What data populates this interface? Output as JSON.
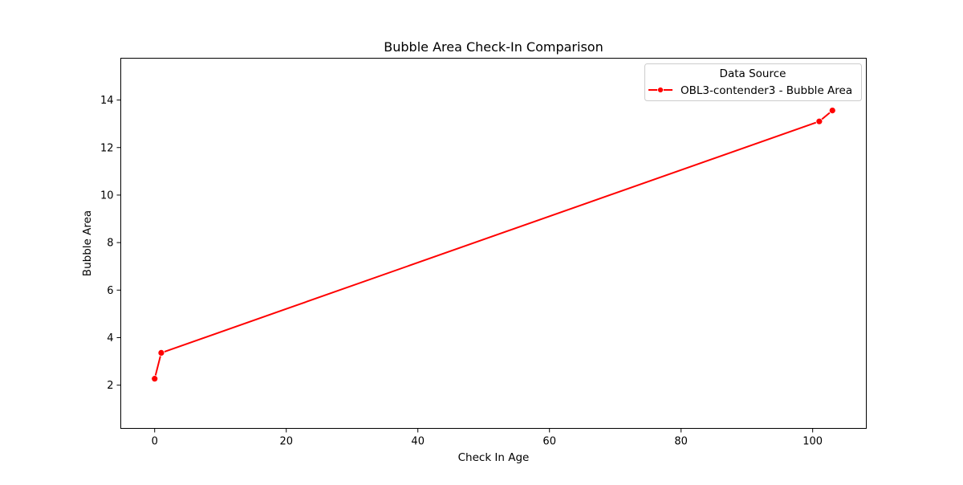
{
  "chart_data": {
    "type": "line",
    "title": "Bubble Area Check-In Comparison",
    "xlabel": "Check In Age",
    "ylabel": "Bubble Area",
    "xlim": [
      -5.15,
      108.15
    ],
    "ylim": [
      0.18,
      15.76
    ],
    "x_ticks": [
      0,
      20,
      40,
      60,
      80,
      100
    ],
    "y_ticks": [
      2,
      4,
      6,
      8,
      10,
      12,
      14
    ],
    "grid": false,
    "legend": {
      "title": "Data Source",
      "position": "top-right"
    },
    "series": [
      {
        "name": "OBL3-contender3 - Bubble Area",
        "color": "#ff0000",
        "marker": "circle",
        "x": [
          0,
          1,
          101,
          103
        ],
        "y": [
          2.27,
          3.36,
          13.1,
          13.56
        ]
      }
    ]
  }
}
